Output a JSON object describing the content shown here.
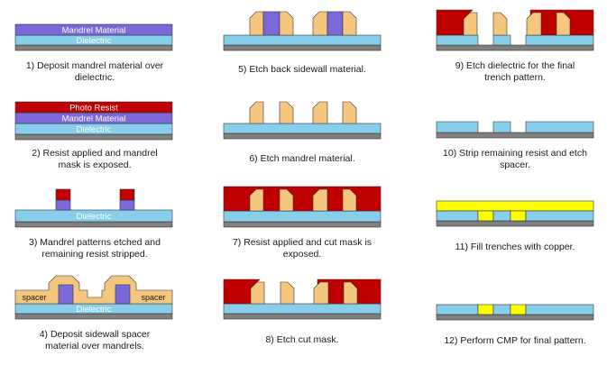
{
  "labels": {
    "mandrel": "Mandrel Material",
    "dielectric": "Dielectric",
    "photo_resist": "Photo Resist",
    "spacer": "spacer"
  },
  "steps": [
    {
      "lines": [
        "1) Deposit mandrel material over",
        "dielectric."
      ]
    },
    {
      "lines": [
        "2) Resist applied and mandrel",
        "mask is exposed."
      ]
    },
    {
      "lines": [
        "3) Mandrel patterns etched and",
        "remaining resist stripped."
      ]
    },
    {
      "lines": [
        "4) Deposit sidewall spacer",
        "material over mandrels."
      ]
    },
    {
      "lines": [
        "5) Etch back sidewall material."
      ]
    },
    {
      "lines": [
        "6) Etch mandrel material."
      ]
    },
    {
      "lines": [
        "7) Resist applied and cut mask is",
        "exposed."
      ]
    },
    {
      "lines": [
        "8) Etch cut mask."
      ]
    },
    {
      "lines": [
        "9) Etch dielectric for the final",
        "trench pattern."
      ]
    },
    {
      "lines": [
        "10) Strip remaining resist and etch",
        "spacer."
      ]
    },
    {
      "lines": [
        "11) Fill trenches with copper."
      ]
    },
    {
      "lines": [
        "12) Perform CMP for final pattern."
      ]
    }
  ],
  "colors": {
    "substrate": "#808080",
    "dielectric": "#87CEEB",
    "mandrel": "#7B68D9",
    "resist": "#C00000",
    "spacer": "#F5C77E",
    "copper": "#FFFF00",
    "outline": "#333333"
  }
}
